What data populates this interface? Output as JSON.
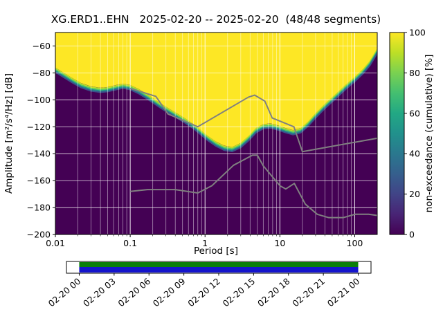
{
  "window": {
    "title": "XG.ERD1..EHN   2025-02-20 -- 2025-02-20  (48/48 segments)"
  },
  "chart_data": {
    "type": "heatmap",
    "title": "XG.ERD1..EHN   2025-02-20 -- 2025-02-20  (48/48 segments)",
    "xlabel": "Period [s]",
    "ylabel": "Amplitude [m²/s⁴/Hz] [dB]",
    "colorbar_label": "non-exceedance (cumulative) [%]",
    "x_scale": "log",
    "xlim": [
      0.01,
      200
    ],
    "ylim": [
      -200,
      -50
    ],
    "x_ticks": [
      0.01,
      0.1,
      1,
      10,
      100
    ],
    "x_tick_labels": [
      "0.01",
      "0.1",
      "1",
      "10",
      "100"
    ],
    "y_ticks": [
      -200,
      -180,
      -160,
      -140,
      -120,
      -100,
      -80,
      -60
    ],
    "colorbar_ticks": [
      0,
      20,
      40,
      60,
      80,
      100
    ],
    "colormap": "viridis",
    "grid": true,
    "colors": {
      "low": "#440154",
      "high": "#fde725",
      "grid": "#ffffff",
      "noise_model": "#808080",
      "frame": "#000000"
    },
    "colorbar_stops": [
      "#440154",
      "#482475",
      "#414487",
      "#355f8d",
      "#2a788e",
      "#21918c",
      "#22a884",
      "#44bf70",
      "#7ad151",
      "#bddf26",
      "#fde725"
    ],
    "transition_band": [
      "#bddf26",
      "#5ec962",
      "#21918c",
      "#3b528b"
    ],
    "psd_boundary": {
      "periods": [
        0.01,
        0.013,
        0.017,
        0.022,
        0.03,
        0.04,
        0.05,
        0.065,
        0.08,
        0.1,
        0.13,
        0.17,
        0.21,
        0.26,
        0.33,
        0.42,
        0.55,
        0.7,
        0.9,
        1.1,
        1.4,
        1.8,
        2.3,
        3,
        3.8,
        4.8,
        6,
        7.5,
        9.5,
        12,
        15,
        19,
        24,
        30,
        40,
        55,
        75,
        100,
        130,
        160,
        200
      ],
      "db": [
        -76,
        -80,
        -84,
        -87.5,
        -90,
        -91,
        -90.5,
        -89,
        -88,
        -89,
        -92,
        -96,
        -99.5,
        -103,
        -106.5,
        -110,
        -114,
        -118,
        -123,
        -127,
        -131,
        -134,
        -135,
        -132,
        -127,
        -121,
        -118,
        -117.5,
        -119,
        -121,
        -122.5,
        -121,
        -116,
        -110,
        -103,
        -96,
        -89,
        -83,
        -77,
        -71,
        -62
      ]
    },
    "noise_models": [
      {
        "name": "high-noise-model",
        "periods": [
          0.1,
          0.22,
          0.32,
          0.8,
          3.8,
          4.6,
          6.3,
          7.9,
          15.4,
          20,
          200
        ],
        "db": [
          -91.5,
          -97.4,
          -110.5,
          -120,
          -98,
          -96.5,
          -101,
          -113.5,
          -120,
          -138.5,
          -128.5
        ]
      },
      {
        "name": "low-noise-model",
        "periods": [
          0.1,
          0.17,
          0.4,
          0.8,
          1.24,
          2.4,
          4.3,
          5,
          6,
          10,
          12,
          15.6,
          21.9,
          31.6,
          45,
          70,
          101,
          154,
          200
        ],
        "db": [
          -168,
          -166.7,
          -166.7,
          -169.2,
          -163.7,
          -148.6,
          -141.1,
          -141.1,
          -149,
          -163.8,
          -166.2,
          -162.1,
          -177.5,
          -185,
          -187.5,
          -187.5,
          -185,
          -185,
          -185.9
        ]
      }
    ],
    "timeline": {
      "tick_labels": [
        "02-20 00",
        "02-20 03",
        "02-20 06",
        "02-20 09",
        "02-20 12",
        "02-20 15",
        "02-20 18",
        "02-20 21",
        "02-21 00"
      ],
      "coverage_colors": [
        "#0a7e0a",
        "#1414cc"
      ],
      "background": "#ffffff"
    }
  }
}
